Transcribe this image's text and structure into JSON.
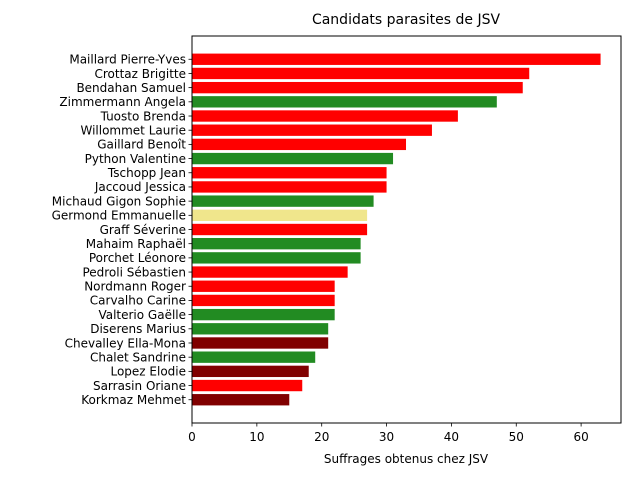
{
  "chart_data": {
    "type": "bar",
    "orientation": "horizontal",
    "title": "Candidats parasites de JSV",
    "xlabel": "Suffrages obtenus chez JSV",
    "ylabel": "",
    "xlim": [
      0,
      66.15
    ],
    "xticks": [
      "0",
      "10",
      "20",
      "30",
      "40",
      "50",
      "60"
    ],
    "grid": false,
    "categories": [
      "Maillard Pierre-Yves",
      "Crottaz Brigitte",
      "Bendahan Samuel",
      "Zimmermann Angela",
      "Tuosto Brenda",
      "Willommet Laurie",
      "Gaillard Benoît",
      "Python Valentine",
      "Tschopp Jean",
      "Jaccoud Jessica",
      "Michaud Gigon Sophie",
      "Germond Emmanuelle",
      "Graff Séverine",
      "Mahaim Raphaël",
      "Porchet Léonore",
      "Pedroli Sébastien",
      "Nordmann Roger",
      "Carvalho Carine",
      "Valterio Gaëlle",
      "Diserens Marius",
      "Chevalley Ella-Mona",
      "Chalet Sandrine",
      "Lopez Elodie",
      "Sarrasin Oriane",
      "Korkmaz Mehmet"
    ],
    "values": [
      63,
      52,
      51,
      47,
      41,
      37,
      33,
      31,
      30,
      30,
      28,
      27,
      27,
      26,
      26,
      24,
      22,
      22,
      22,
      21,
      21,
      19,
      18,
      17,
      15
    ],
    "colors": [
      "#ff0000",
      "#ff0000",
      "#ff0000",
      "#228b22",
      "#ff0000",
      "#ff0000",
      "#ff0000",
      "#228b22",
      "#ff0000",
      "#ff0000",
      "#228b22",
      "#f0e68c",
      "#ff0000",
      "#228b22",
      "#228b22",
      "#ff0000",
      "#ff0000",
      "#ff0000",
      "#228b22",
      "#228b22",
      "#800000",
      "#228b22",
      "#800000",
      "#ff0000",
      "#800000"
    ]
  }
}
